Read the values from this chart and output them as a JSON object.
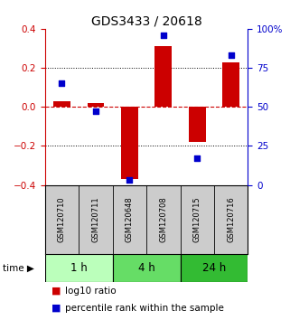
{
  "title": "GDS3433 / 20618",
  "samples": [
    "GSM120710",
    "GSM120711",
    "GSM120648",
    "GSM120708",
    "GSM120715",
    "GSM120716"
  ],
  "log10_ratio": [
    0.03,
    0.02,
    -0.37,
    0.31,
    -0.18,
    0.23
  ],
  "percentile_rank": [
    65,
    47,
    3,
    96,
    17,
    83
  ],
  "groups": [
    {
      "label": "1 h",
      "indices": [
        0,
        1
      ],
      "color": "#bbffbb"
    },
    {
      "label": "4 h",
      "indices": [
        2,
        3
      ],
      "color": "#66dd66"
    },
    {
      "label": "24 h",
      "indices": [
        4,
        5
      ],
      "color": "#33bb33"
    }
  ],
  "bar_color": "#cc0000",
  "dot_color": "#0000cc",
  "left_ylim": [
    -0.4,
    0.4
  ],
  "right_ylim": [
    0,
    100
  ],
  "left_yticks": [
    -0.4,
    -0.2,
    0.0,
    0.2,
    0.4
  ],
  "right_yticks": [
    0,
    25,
    50,
    75,
    100
  ],
  "right_yticklabels": [
    "0",
    "25",
    "50",
    "75",
    "100%"
  ],
  "hline_y": 0.0,
  "dotted_lines": [
    -0.2,
    0.2
  ],
  "background_color": "#ffffff",
  "sample_area_color": "#cccccc",
  "bar_width": 0.5
}
